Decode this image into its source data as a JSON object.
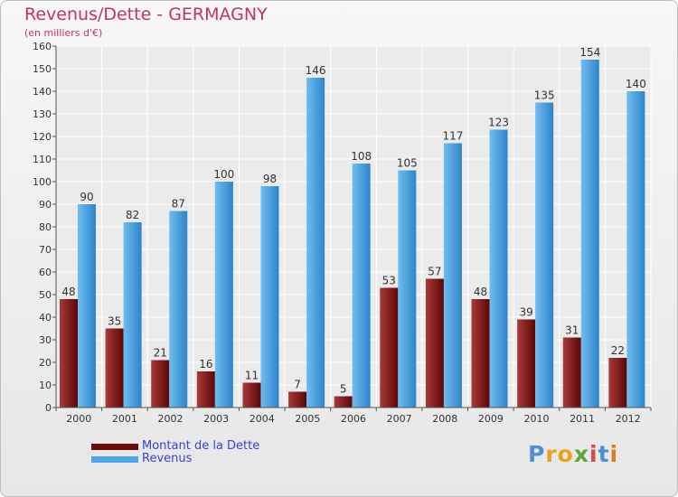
{
  "header": {
    "title": "Revenus/Dette - GERMAGNY",
    "subtitle": "(en milliers d'€)"
  },
  "colors": {
    "debt": "#7a1010",
    "debt_light": "#a83a3a",
    "revenue": "#3a95d8",
    "revenue_light": "#6fbdf0",
    "axis_text": "#333333",
    "title": "#c4306a",
    "legend_text": "#3a40d8"
  },
  "legend": {
    "items": [
      {
        "label": "Montant de la Dette",
        "color": "#6b0b0b"
      },
      {
        "label": "Revenus",
        "color": "#4aa6e8"
      }
    ]
  },
  "brand": {
    "letters": [
      "P",
      "r",
      "o",
      "x",
      "i",
      "t",
      "i"
    ],
    "colors": [
      "#4d8fd6",
      "#e9a21a",
      "#e9a21a",
      "#5aa83a",
      "#d64a4a",
      "#4d8fd6",
      "#e07a1a"
    ]
  },
  "chart_data": {
    "type": "bar",
    "categories": [
      "2000",
      "2001",
      "2002",
      "2003",
      "2004",
      "2005",
      "2006",
      "2007",
      "2008",
      "2009",
      "2010",
      "2011",
      "2012"
    ],
    "series": [
      {
        "name": "Montant de la Dette",
        "values": [
          48,
          35,
          21,
          16,
          11,
          7,
          5,
          53,
          57,
          48,
          39,
          31,
          22
        ]
      },
      {
        "name": "Revenus",
        "values": [
          90,
          82,
          87,
          100,
          98,
          146,
          108,
          105,
          117,
          123,
          135,
          154,
          140
        ]
      }
    ],
    "ylim": [
      0,
      160
    ],
    "yticks": [
      0,
      10,
      20,
      30,
      40,
      50,
      60,
      70,
      80,
      90,
      100,
      110,
      120,
      130,
      140,
      150,
      160
    ],
    "grid": true,
    "legend": "bottom-left"
  }
}
